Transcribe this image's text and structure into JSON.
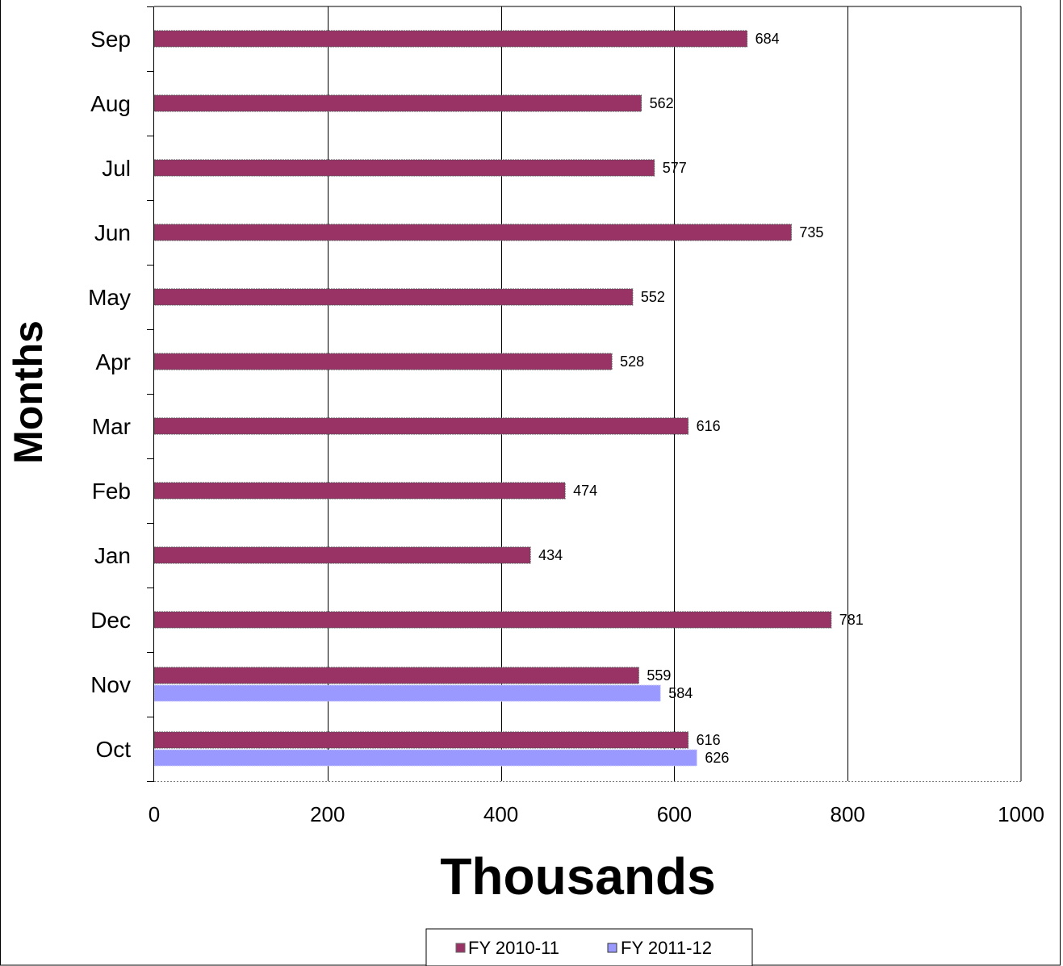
{
  "chart_data": {
    "type": "bar",
    "orientation": "horizontal",
    "categories": [
      "Oct",
      "Nov",
      "Dec",
      "Jan",
      "Feb",
      "Mar",
      "Apr",
      "May",
      "Jun",
      "Jul",
      "Aug",
      "Sep"
    ],
    "series": [
      {
        "name": "FY 2010-11",
        "color": "#993366",
        "values": [
          616,
          559,
          781,
          434,
          474,
          616,
          528,
          552,
          735,
          577,
          562,
          684
        ]
      },
      {
        "name": "FY 2011-12",
        "color": "#9999FF",
        "values": [
          626,
          584,
          null,
          null,
          null,
          null,
          null,
          null,
          null,
          null,
          null,
          null
        ]
      }
    ],
    "xlabel": "Thousands",
    "ylabel": "Months",
    "xlim": [
      0,
      1000
    ],
    "xticks": [
      0,
      200,
      400,
      600,
      800,
      1000
    ],
    "grid": "vertical",
    "legend": "bottom-center",
    "data_labels": true
  }
}
